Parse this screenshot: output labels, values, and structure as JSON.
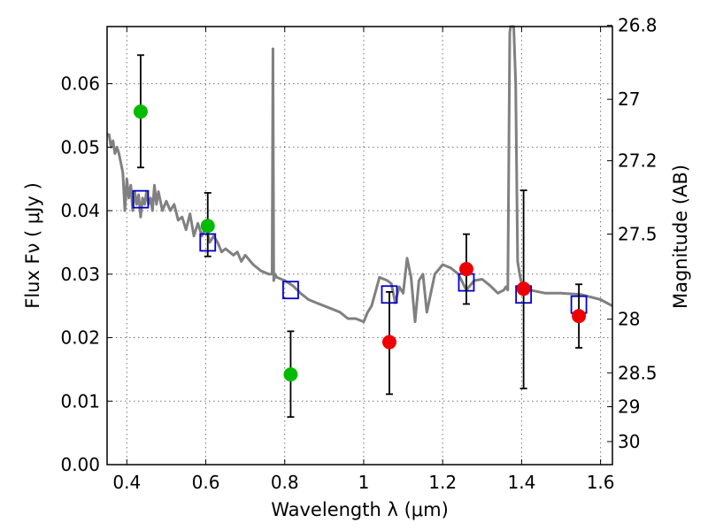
{
  "chart_data": {
    "type": "scatter",
    "xlabel": "Wavelength  λ (μm)",
    "ylabel": "Flux  Fν  ( μJy )",
    "y2label": "Magnitude (AB)",
    "xlim": [
      0.35,
      1.63
    ],
    "ylim": [
      0.0,
      0.069
    ],
    "grid": true,
    "x_ticks": [
      0.4,
      0.6,
      0.8,
      1.0,
      1.2,
      1.4,
      1.6
    ],
    "x_tick_labels": [
      "0.4",
      "0.6",
      "0.8",
      "1",
      "1.2",
      "1.4",
      "1.6"
    ],
    "y_ticks": [
      0.0,
      0.01,
      0.02,
      0.03,
      0.04,
      0.05,
      0.06
    ],
    "y_tick_labels": [
      "0.00",
      "0.01",
      "0.02",
      "0.03",
      "0.04",
      "0.05",
      "0.06"
    ],
    "y2_ticks": [
      26.8,
      27,
      27.2,
      27.5,
      28,
      28.5,
      29,
      30
    ],
    "y2_tick_labels": [
      "26.8",
      "27",
      "27.2",
      "27.5",
      "28",
      "28.5",
      "29",
      "30"
    ],
    "colors": {
      "template": "#808080",
      "model_points": "#0000cc",
      "optical_points": "#00bb00",
      "nir_points": "#ee0000",
      "errorbars": "#000000"
    },
    "series": [
      {
        "kind": "template",
        "x": [
          0.35,
          0.355,
          0.36,
          0.365,
          0.37,
          0.375,
          0.38,
          0.385,
          0.39,
          0.395,
          0.4,
          0.405,
          0.41,
          0.415,
          0.42,
          0.425,
          0.43,
          0.435,
          0.44,
          0.445,
          0.45,
          0.455,
          0.46,
          0.465,
          0.47,
          0.475,
          0.48,
          0.49,
          0.5,
          0.51,
          0.52,
          0.53,
          0.54,
          0.55,
          0.56,
          0.57,
          0.58,
          0.59,
          0.6,
          0.61,
          0.62,
          0.63,
          0.64,
          0.65,
          0.66,
          0.67,
          0.68,
          0.69,
          0.7,
          0.72,
          0.74,
          0.76,
          0.768,
          0.77,
          0.772,
          0.776,
          0.78,
          0.8,
          0.82,
          0.84,
          0.86,
          0.88,
          0.9,
          0.92,
          0.94,
          0.96,
          0.98,
          1.0,
          1.01,
          1.02,
          1.04,
          1.06,
          1.07,
          1.08,
          1.09,
          1.1,
          1.11,
          1.12,
          1.13,
          1.14,
          1.15,
          1.16,
          1.18,
          1.2,
          1.22,
          1.24,
          1.26,
          1.28,
          1.3,
          1.32,
          1.34,
          1.355,
          1.36,
          1.365,
          1.37,
          1.372,
          1.38,
          1.385,
          1.39,
          1.395,
          1.4,
          1.42,
          1.46,
          1.5,
          1.55,
          1.6,
          1.63
        ],
        "y": [
          0.052,
          0.052,
          0.05,
          0.051,
          0.049,
          0.05,
          0.049,
          0.0475,
          0.046,
          0.04,
          0.045,
          0.042,
          0.044,
          0.04,
          0.043,
          0.041,
          0.0425,
          0.039,
          0.042,
          0.041,
          0.043,
          0.041,
          0.042,
          0.04,
          0.044,
          0.041,
          0.043,
          0.04,
          0.0415,
          0.04,
          0.041,
          0.0385,
          0.039,
          0.037,
          0.0395,
          0.036,
          0.038,
          0.036,
          0.0375,
          0.035,
          0.036,
          0.035,
          0.0335,
          0.034,
          0.0335,
          0.033,
          0.0335,
          0.032,
          0.033,
          0.0315,
          0.0305,
          0.03,
          0.03,
          0.0655,
          0.029,
          0.03,
          0.0295,
          0.029,
          0.0282,
          0.027,
          0.026,
          0.0255,
          0.025,
          0.0245,
          0.024,
          0.023,
          0.023,
          0.0225,
          0.024,
          0.025,
          0.0295,
          0.029,
          0.0285,
          0.0255,
          0.028,
          0.027,
          0.0325,
          0.0295,
          0.0225,
          0.029,
          0.03,
          0.024,
          0.03,
          0.0315,
          0.031,
          0.03,
          0.0275,
          0.029,
          0.0292,
          0.0282,
          0.027,
          0.0275,
          0.028,
          0.0275,
          0.068,
          0.069,
          0.069,
          0.06,
          0.032,
          0.03,
          0.0285,
          0.0275,
          0.027,
          0.027,
          0.0268,
          0.026,
          0.025
        ]
      },
      {
        "kind": "model_points",
        "x": [
          0.435,
          0.605,
          0.815,
          1.065,
          1.26,
          1.405,
          1.545
        ],
        "y": [
          0.0418,
          0.035,
          0.0275,
          0.0268,
          0.0287,
          0.0268,
          0.0252
        ]
      },
      {
        "kind": "optical_points",
        "x": [
          0.435,
          0.605,
          0.815
        ],
        "y": [
          0.0556,
          0.0376,
          0.0142
        ],
        "yerr_low": [
          0.0468,
          0.0328,
          0.0075
        ],
        "yerr_high": [
          0.0645,
          0.0428,
          0.021
        ]
      },
      {
        "kind": "nir_points",
        "x": [
          1.065,
          1.26,
          1.405,
          1.545
        ],
        "y": [
          0.0193,
          0.0308,
          0.0277,
          0.0234
        ],
        "yerr_low": [
          0.0111,
          0.0253,
          0.012,
          0.0184
        ],
        "yerr_high": [
          0.0272,
          0.0363,
          0.0432,
          0.0284
        ]
      }
    ]
  }
}
